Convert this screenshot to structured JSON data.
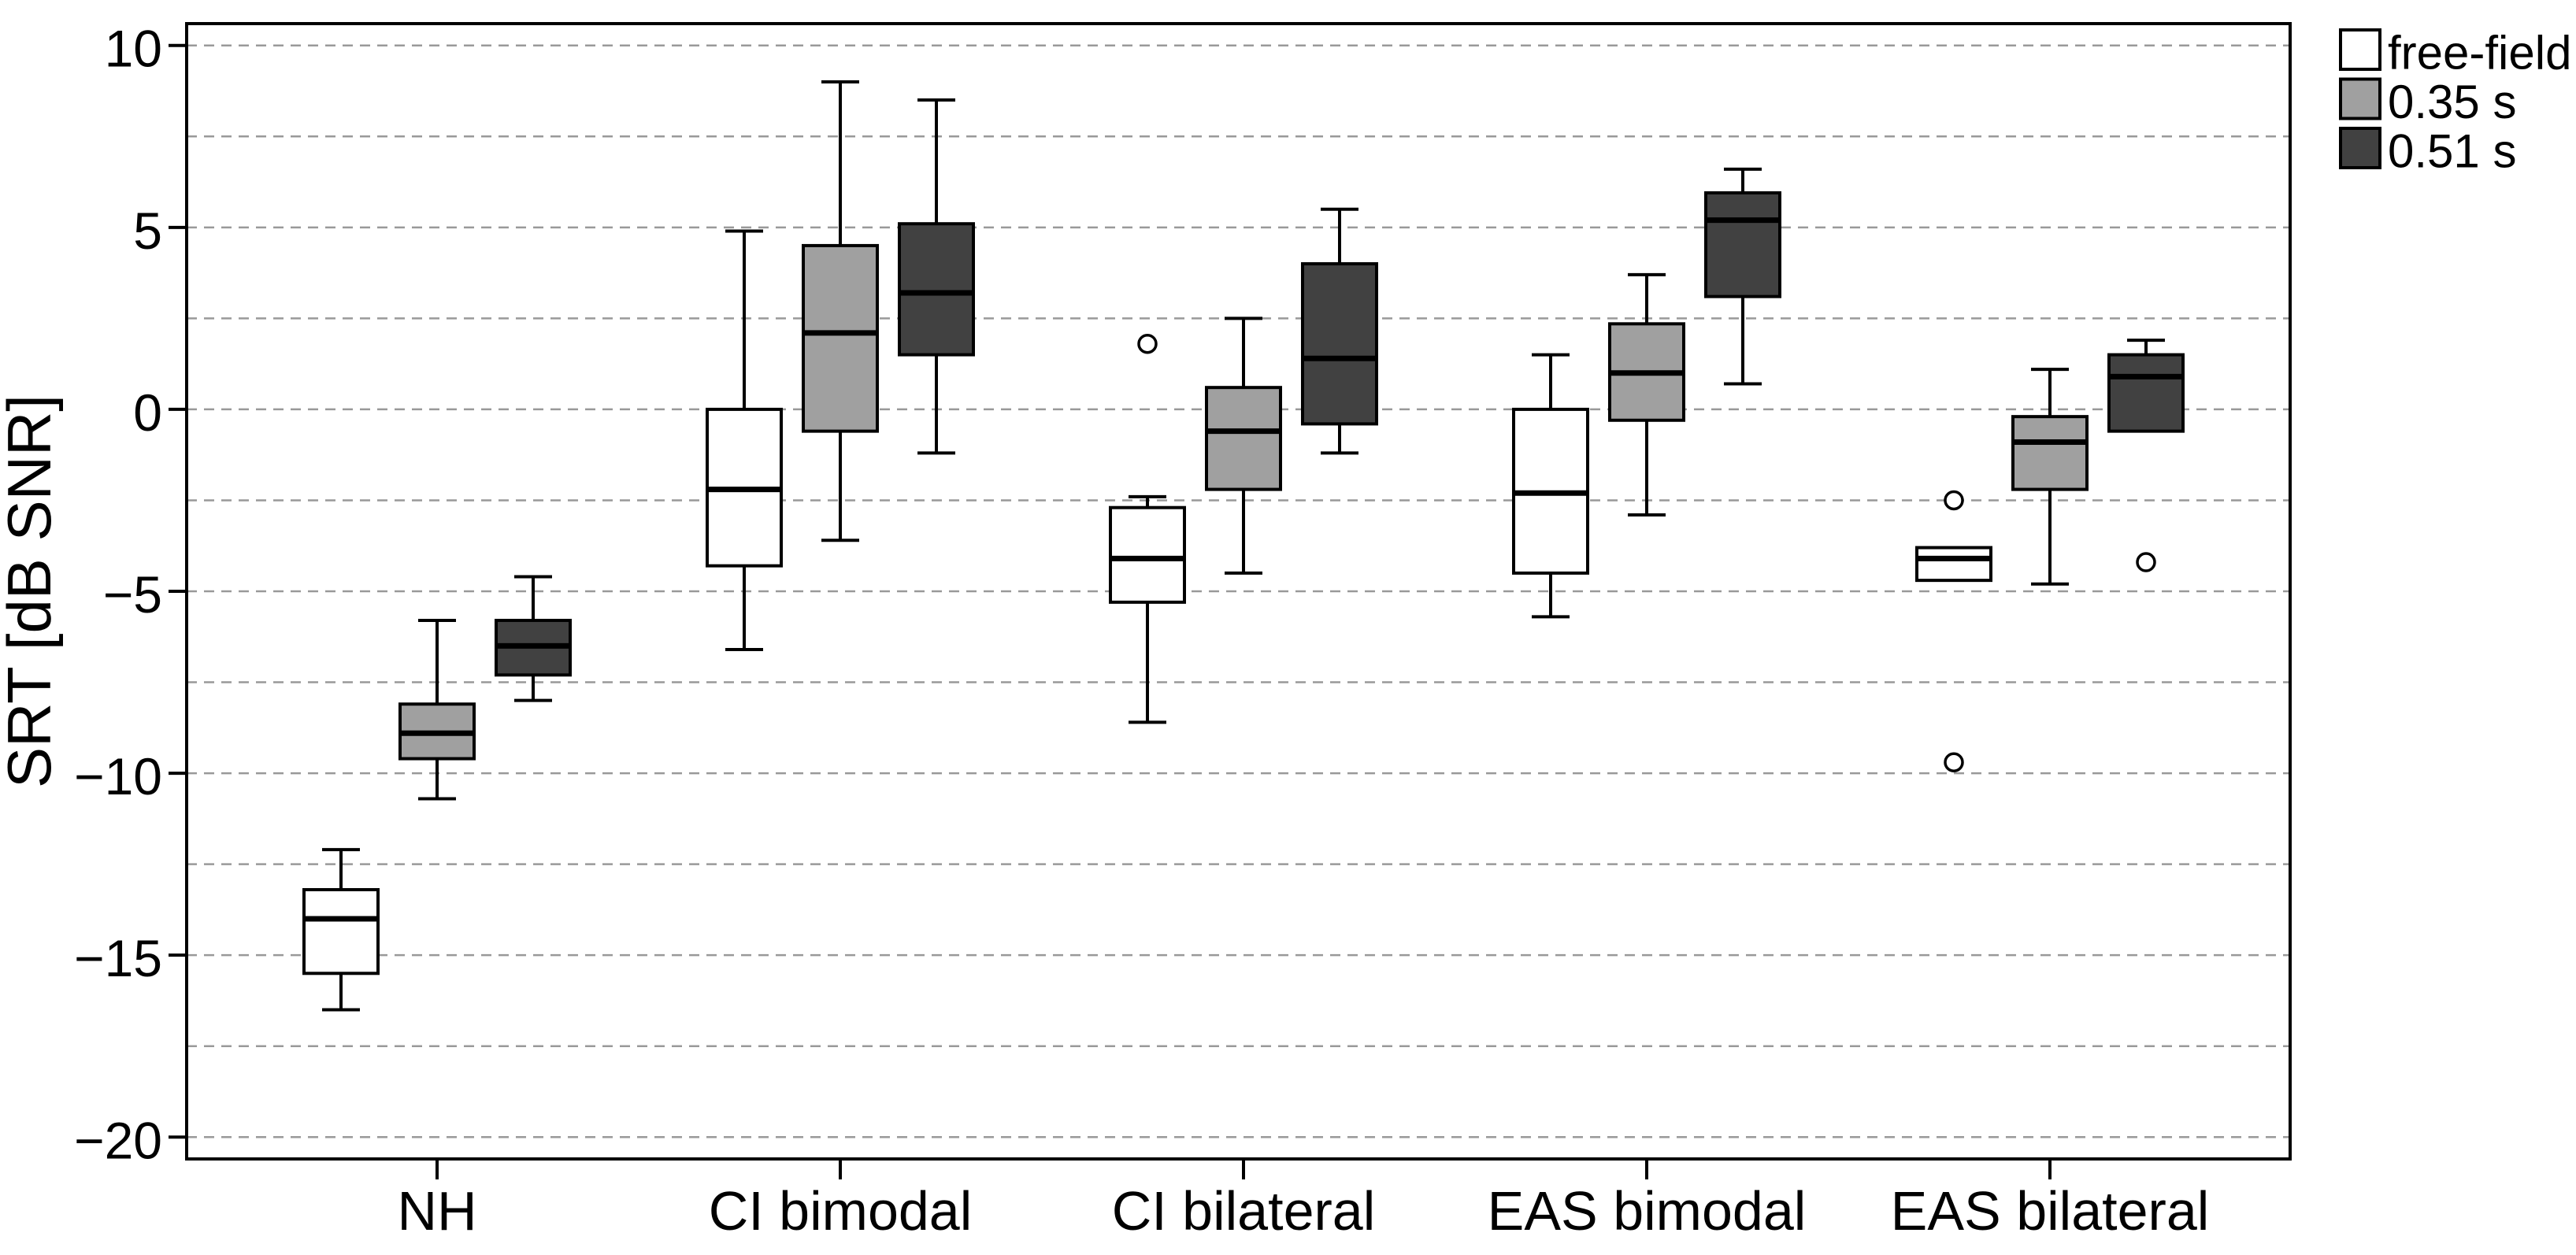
{
  "page": {
    "background": "#ffffff"
  },
  "chart_data": {
    "type": "boxplot",
    "title": "",
    "xlabel": "",
    "ylabel": "SRT [dB SNR]",
    "ylim": [
      -20,
      10
    ],
    "grid": "horizontal-dashed",
    "grid_step": 2.5,
    "grid_range": [
      -20,
      10
    ],
    "yticks": [
      {
        "value": 10,
        "label": "10"
      },
      {
        "value": 5,
        "label": "5"
      },
      {
        "value": 0,
        "label": "0"
      },
      {
        "value": -5,
        "label": "−5"
      },
      {
        "value": -10,
        "label": "−10"
      },
      {
        "value": -15,
        "label": "−15"
      },
      {
        "value": -20,
        "label": "−20"
      }
    ],
    "categories": [
      "NH",
      "CI bimodal",
      "CI bilateral",
      "EAS bimodal",
      "EAS bilateral"
    ],
    "legend": {
      "position": "top-right-outside",
      "items": [
        {
          "label": "free-field",
          "fill": "#ffffff"
        },
        {
          "label": "0.35 s",
          "fill": "#a0a0a0"
        },
        {
          "label": "0.51 s",
          "fill": "#414141"
        }
      ]
    },
    "series": [
      {
        "name": "free-field",
        "fill": "#ffffff",
        "boxes": [
          {
            "low": -16.5,
            "q1": -15.5,
            "median": -14.0,
            "q3": -13.2,
            "high": -12.1,
            "outliers": []
          },
          {
            "low": -6.6,
            "q1": -4.3,
            "median": -2.2,
            "q3": 0.0,
            "high": 4.9,
            "outliers": []
          },
          {
            "low": -8.6,
            "q1": -5.3,
            "median": -4.1,
            "q3": -2.7,
            "high": -2.4,
            "outliers": [
              1.8
            ]
          },
          {
            "low": -5.7,
            "q1": -4.5,
            "median": -2.3,
            "q3": 0.0,
            "high": 1.5,
            "outliers": []
          },
          {
            "low": -4.7,
            "q1": -4.7,
            "median": -4.1,
            "q3": -3.8,
            "high": -3.8,
            "outliers": [
              -2.5,
              -9.7
            ]
          }
        ]
      },
      {
        "name": "0.35 s",
        "fill": "#a0a0a0",
        "boxes": [
          {
            "low": -10.7,
            "q1": -9.6,
            "median": -8.9,
            "q3": -8.1,
            "high": -5.8,
            "outliers": []
          },
          {
            "low": -3.6,
            "q1": -0.6,
            "median": 2.1,
            "q3": 4.5,
            "high": 9.0,
            "outliers": []
          },
          {
            "low": -4.5,
            "q1": -2.2,
            "median": -0.6,
            "q3": 0.6,
            "high": 2.5,
            "outliers": []
          },
          {
            "low": -2.9,
            "q1": -0.3,
            "median": 1.0,
            "q3": 2.35,
            "high": 3.7,
            "outliers": []
          },
          {
            "low": -4.8,
            "q1": -2.2,
            "median": -0.9,
            "q3": -0.2,
            "high": 1.1,
            "outliers": []
          }
        ]
      },
      {
        "name": "0.51 s",
        "fill": "#414141",
        "boxes": [
          {
            "low": -8.0,
            "q1": -7.3,
            "median": -6.5,
            "q3": -5.8,
            "high": -4.6,
            "outliers": []
          },
          {
            "low": -1.2,
            "q1": 1.5,
            "median": 3.2,
            "q3": 5.1,
            "high": 8.5,
            "outliers": []
          },
          {
            "low": -1.2,
            "q1": -0.4,
            "median": 1.4,
            "q3": 4.0,
            "high": 5.5,
            "outliers": []
          },
          {
            "low": 0.7,
            "q1": 3.1,
            "median": 5.2,
            "q3": 5.95,
            "high": 6.6,
            "outliers": []
          },
          {
            "low": -0.6,
            "q1": -0.6,
            "median": 0.9,
            "q3": 1.5,
            "high": 1.9,
            "outliers": [
              -4.2
            ]
          }
        ]
      }
    ],
    "style": {
      "frame_color": "#000000",
      "grid_color": "#999999",
      "box_border_color": "#000000",
      "median_color": "#000000",
      "outlier_fill": "#ffffff",
      "text_color": "#000000"
    }
  }
}
